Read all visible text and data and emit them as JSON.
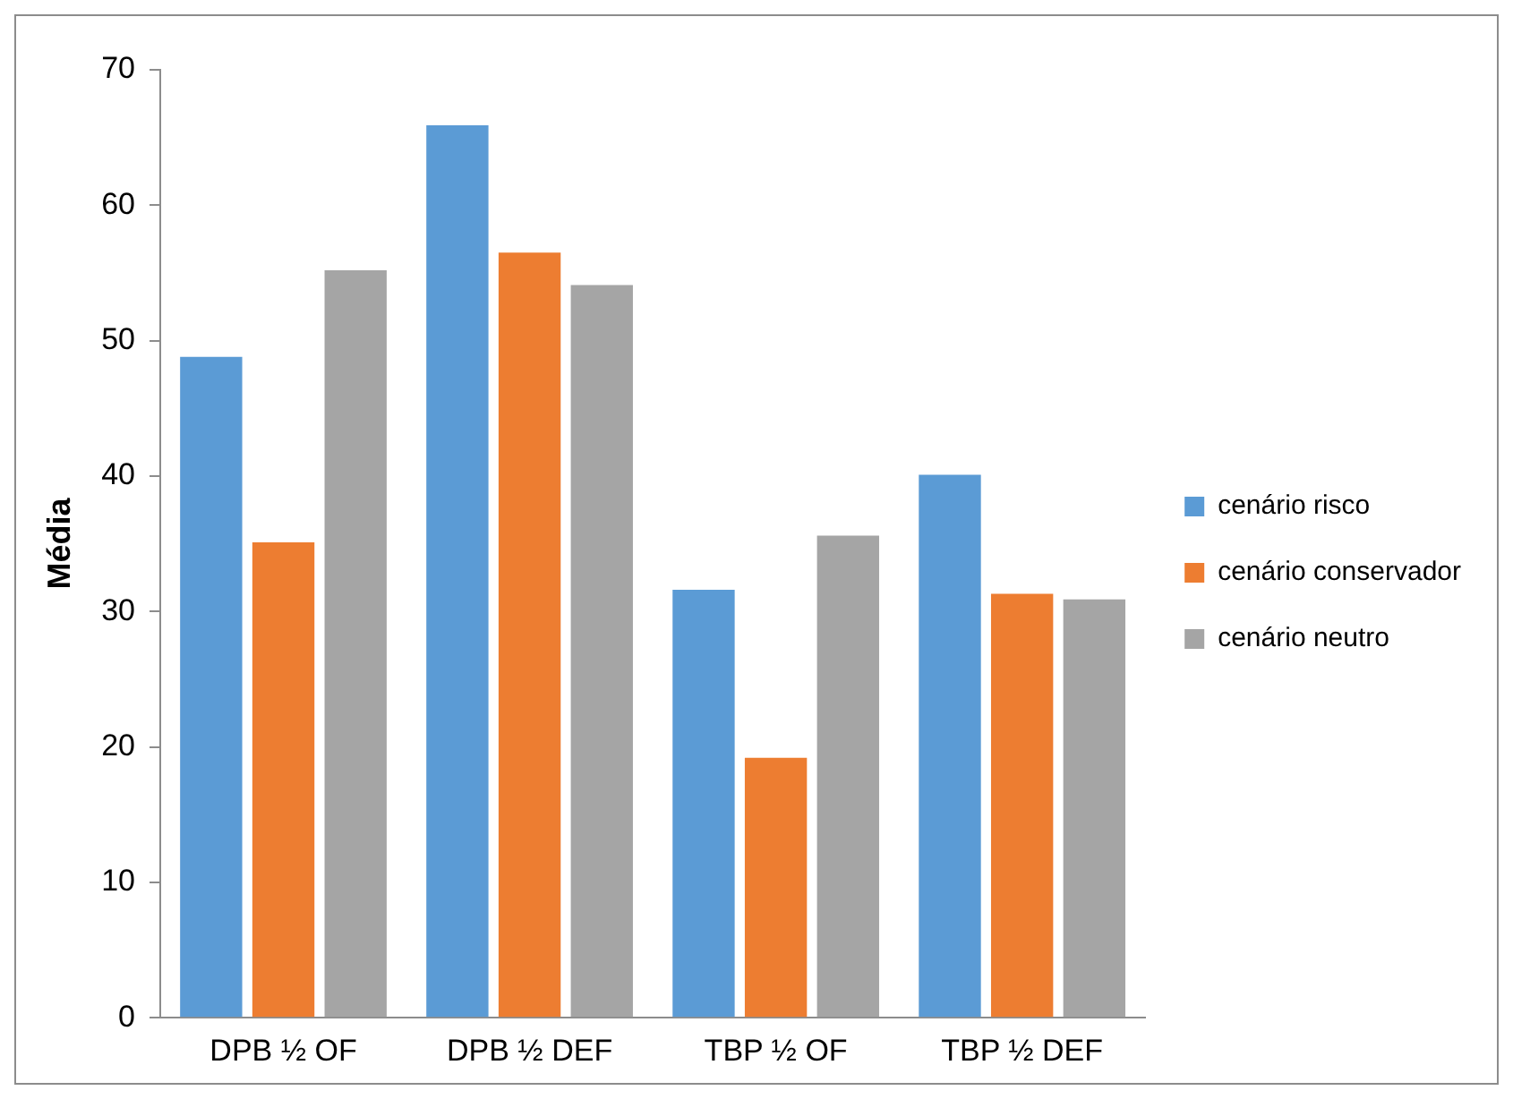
{
  "chart_data": {
    "type": "bar",
    "ylabel": "Média",
    "categories": [
      "DPB ½ OF",
      "DPB ½ DEF",
      "TBP ½ OF",
      "TBP ½ DEF"
    ],
    "series": [
      {
        "name": "cenário risco",
        "color": "#5b9bd5",
        "values": [
          48.8,
          65.9,
          31.6,
          40.1
        ]
      },
      {
        "name": "cenário conservador",
        "color": "#ed7d31",
        "values": [
          35.1,
          56.5,
          19.2,
          31.3
        ]
      },
      {
        "name": "cenário neutro",
        "color": "#a5a5a5",
        "values": [
          55.2,
          54.1,
          35.6,
          30.9
        ]
      }
    ],
    "ylim": [
      0,
      70
    ],
    "yticks": [
      0,
      10,
      20,
      30,
      40,
      50,
      60,
      70
    ],
    "grid": false,
    "legend": "right"
  }
}
